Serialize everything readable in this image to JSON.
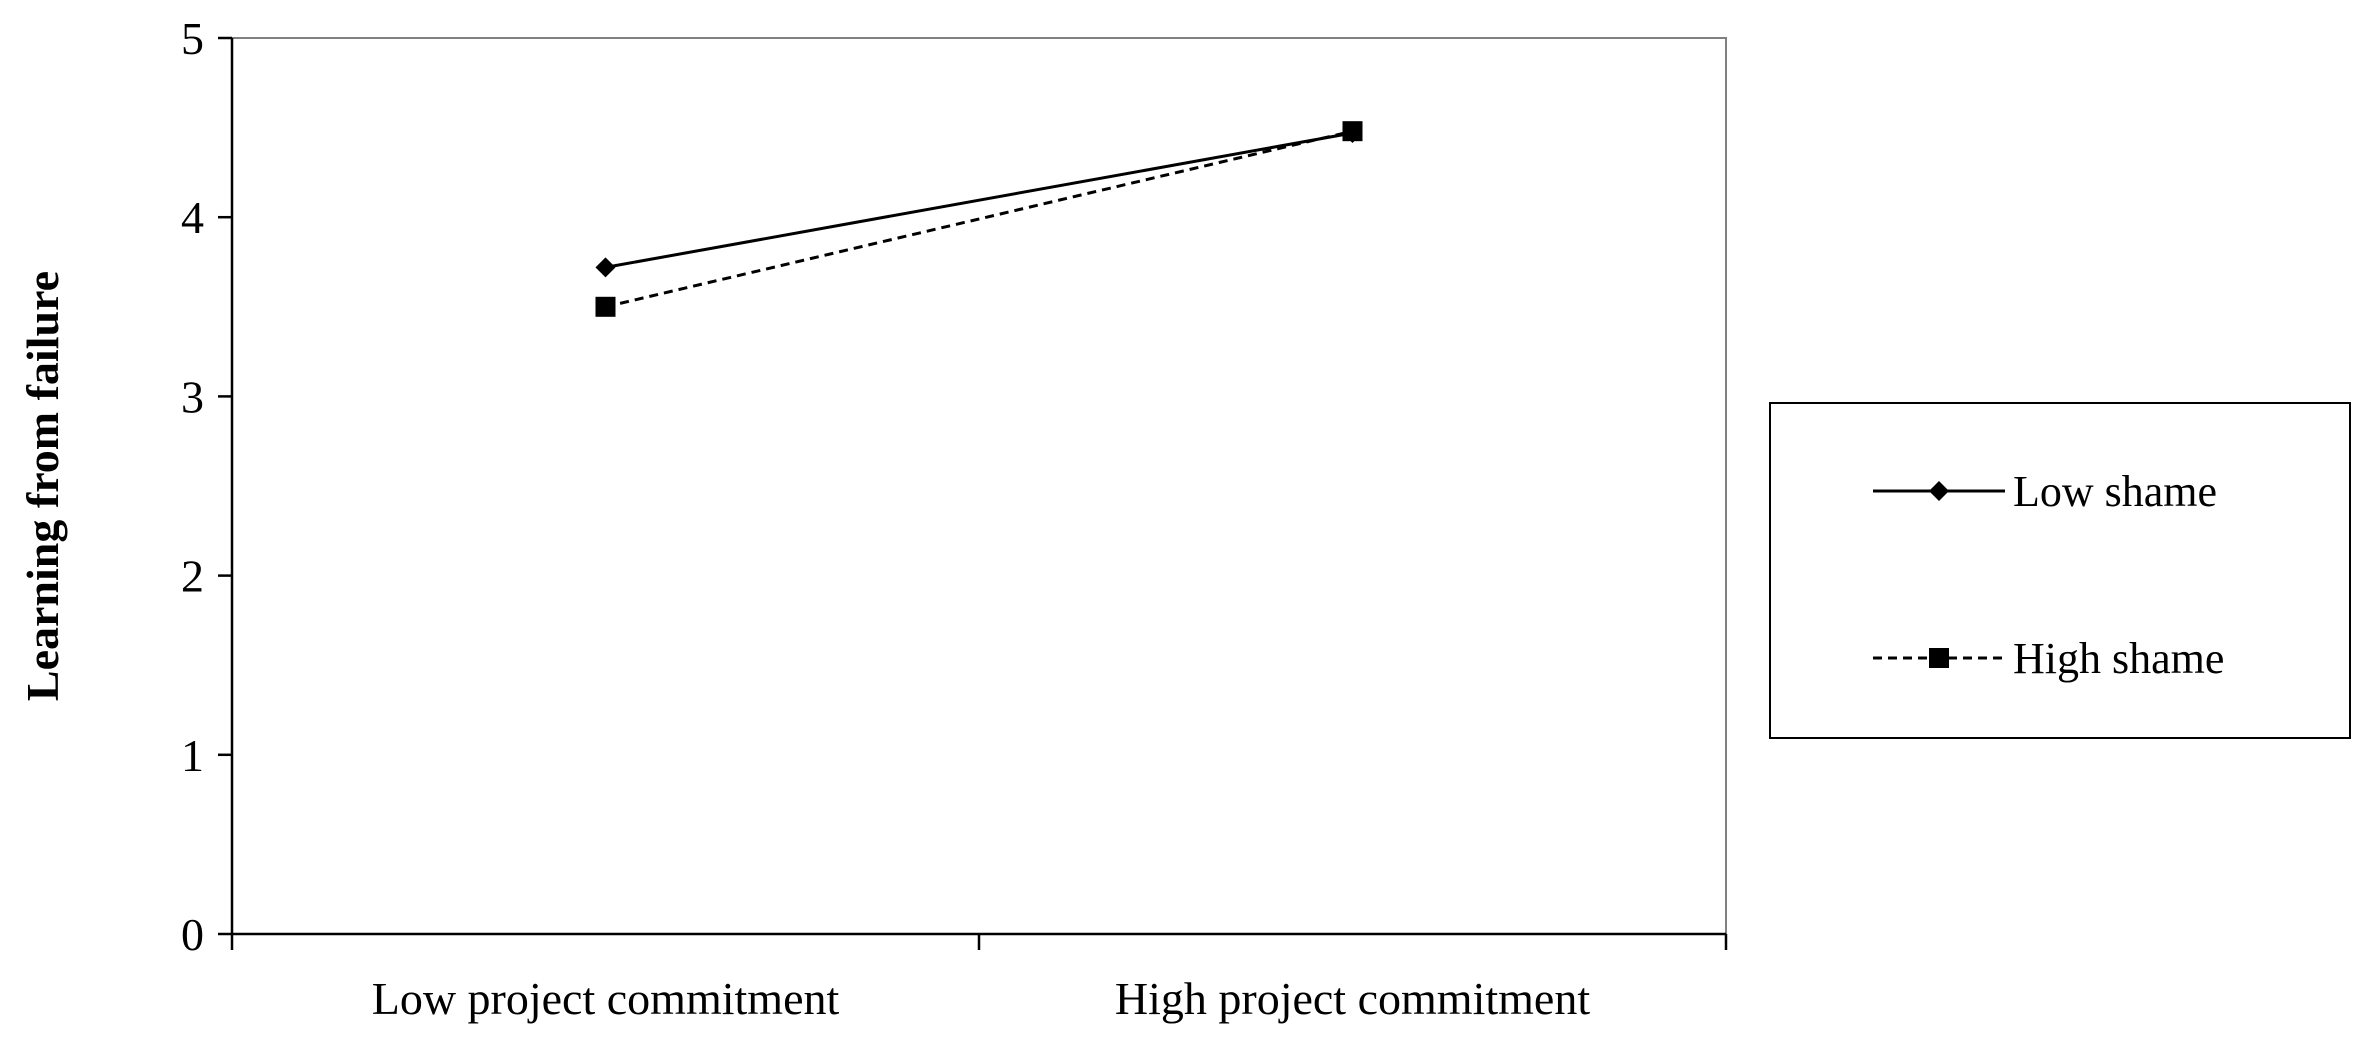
{
  "chart_data": {
    "type": "line",
    "title": "",
    "xlabel": "",
    "ylabel": "Learning from failure",
    "categories": [
      "Low project commitment",
      "High project commitment"
    ],
    "ylim": [
      0,
      5
    ],
    "yticks": [
      "0",
      "1",
      "2",
      "3",
      "4",
      "5"
    ],
    "grid": false,
    "legend_position": "right",
    "series": [
      {
        "name": "Low shame",
        "values": [
          3.72,
          4.47
        ],
        "line": "solid",
        "marker": "diamond"
      },
      {
        "name": "High shame",
        "values": [
          3.5,
          4.48
        ],
        "line": "dashed",
        "marker": "square"
      }
    ]
  }
}
